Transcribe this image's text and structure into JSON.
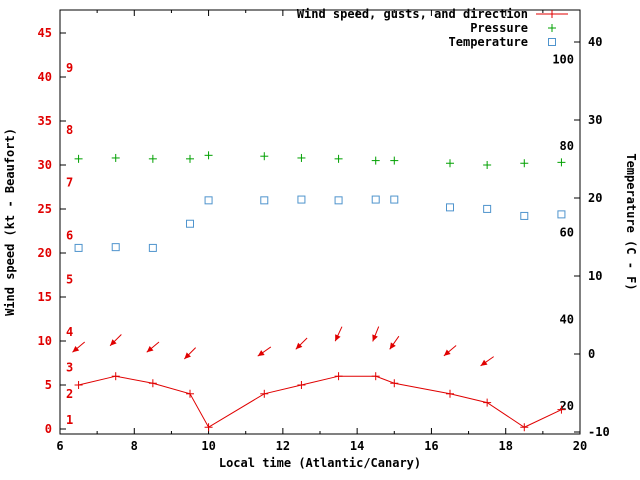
{
  "legend": {
    "wind": "Wind speed, gusts, and direction",
    "pressure": "Pressure",
    "temperature": "Temperature"
  },
  "colors": {
    "wind": "#e00000",
    "pressure": "#00a000",
    "temperature": "#4f94cd",
    "axis": "#000000",
    "left_tick_text": "#e00000",
    "right_tick_text": "#000000",
    "beaufort_text": "#e00000",
    "fahrenheit_text": "#000000"
  },
  "chart_data": {
    "type": "line",
    "title": "",
    "x_axis": {
      "label": "Local time (Atlantic/Canary)",
      "range": [
        6,
        20
      ],
      "major_ticks": [
        6,
        8,
        10,
        12,
        14,
        16,
        18,
        20
      ],
      "minor_ticks": [
        7,
        9,
        11,
        13,
        15,
        17,
        19
      ]
    },
    "y_left": {
      "label": "Wind speed (kt - Beaufort)",
      "range": [
        0,
        45
      ],
      "major_ticks": [
        0,
        5,
        10,
        15,
        20,
        25,
        30,
        35,
        40,
        45
      ],
      "beaufort_scale": [
        {
          "n": "1",
          "kt": 1
        },
        {
          "n": "2",
          "kt": 4
        },
        {
          "n": "3",
          "kt": 7
        },
        {
          "n": "4",
          "kt": 11
        },
        {
          "n": "5",
          "kt": 17
        },
        {
          "n": "6",
          "kt": 22
        },
        {
          "n": "7",
          "kt": 28
        },
        {
          "n": "8",
          "kt": 34
        },
        {
          "n": "9",
          "kt": 41
        }
      ]
    },
    "y_right": {
      "label": "Temperature (C - F)",
      "range_celsius": [
        -10,
        41
      ],
      "celsius_ticks": [
        -10,
        0,
        10,
        20,
        30,
        40
      ],
      "fahrenheit_labels": [
        20,
        40,
        60,
        80,
        100
      ]
    },
    "series": [
      {
        "name": "Wind speed, gusts, and direction",
        "type": "line+plus",
        "axis": "left",
        "color_key": "wind",
        "x": [
          6.5,
          7.5,
          8.5,
          9.5,
          10,
          11.5,
          12.5,
          13.5,
          14.5,
          15,
          16.5,
          17.5,
          18.5,
          19.5
        ],
        "y": [
          5,
          6,
          5.2,
          4,
          0.2,
          4,
          5,
          6,
          6,
          5.2,
          4,
          3,
          0.2,
          2.2
        ]
      },
      {
        "name": "Pressure",
        "type": "plus",
        "axis": "left",
        "color_key": "pressure",
        "x": [
          6.5,
          7.5,
          8.5,
          9.5,
          10,
          11.5,
          12.5,
          13.5,
          14.5,
          15,
          16.5,
          17.5,
          18.5,
          19.5
        ],
        "y": [
          30.7,
          30.8,
          30.7,
          30.7,
          31.1,
          31.0,
          30.8,
          30.7,
          30.5,
          30.5,
          30.2,
          30.0,
          30.2,
          30.3
        ]
      },
      {
        "name": "Temperature",
        "type": "square",
        "axis": "right",
        "color_key": "temperature",
        "x": [
          6.5,
          7.5,
          8.5,
          9.5,
          10,
          11.5,
          12.5,
          13.5,
          14.5,
          15,
          16.5,
          17.5,
          18.5,
          19.5
        ],
        "y": [
          13.6,
          13.7,
          13.6,
          16.7,
          19.7,
          19.7,
          19.8,
          19.7,
          19.8,
          19.8,
          18.8,
          18.6,
          17.7,
          17.9
        ]
      },
      {
        "name": "Wind direction",
        "type": "arrow",
        "axis": "left",
        "color_key": "wind",
        "points": [
          {
            "x": 6.5,
            "kt": 9.3,
            "angle": 140
          },
          {
            "x": 7.5,
            "kt": 10.1,
            "angle": 135
          },
          {
            "x": 8.5,
            "kt": 9.3,
            "angle": 140
          },
          {
            "x": 9.5,
            "kt": 8.6,
            "angle": 135
          },
          {
            "x": 11.5,
            "kt": 8.8,
            "angle": 145
          },
          {
            "x": 12.5,
            "kt": 9.7,
            "angle": 135
          },
          {
            "x": 13.5,
            "kt": 10.8,
            "angle": 115
          },
          {
            "x": 14.5,
            "kt": 10.8,
            "angle": 112
          },
          {
            "x": 15,
            "kt": 9.8,
            "angle": 125
          },
          {
            "x": 16.5,
            "kt": 8.9,
            "angle": 140
          },
          {
            "x": 17.5,
            "kt": 7.7,
            "angle": 145
          }
        ]
      }
    ]
  }
}
